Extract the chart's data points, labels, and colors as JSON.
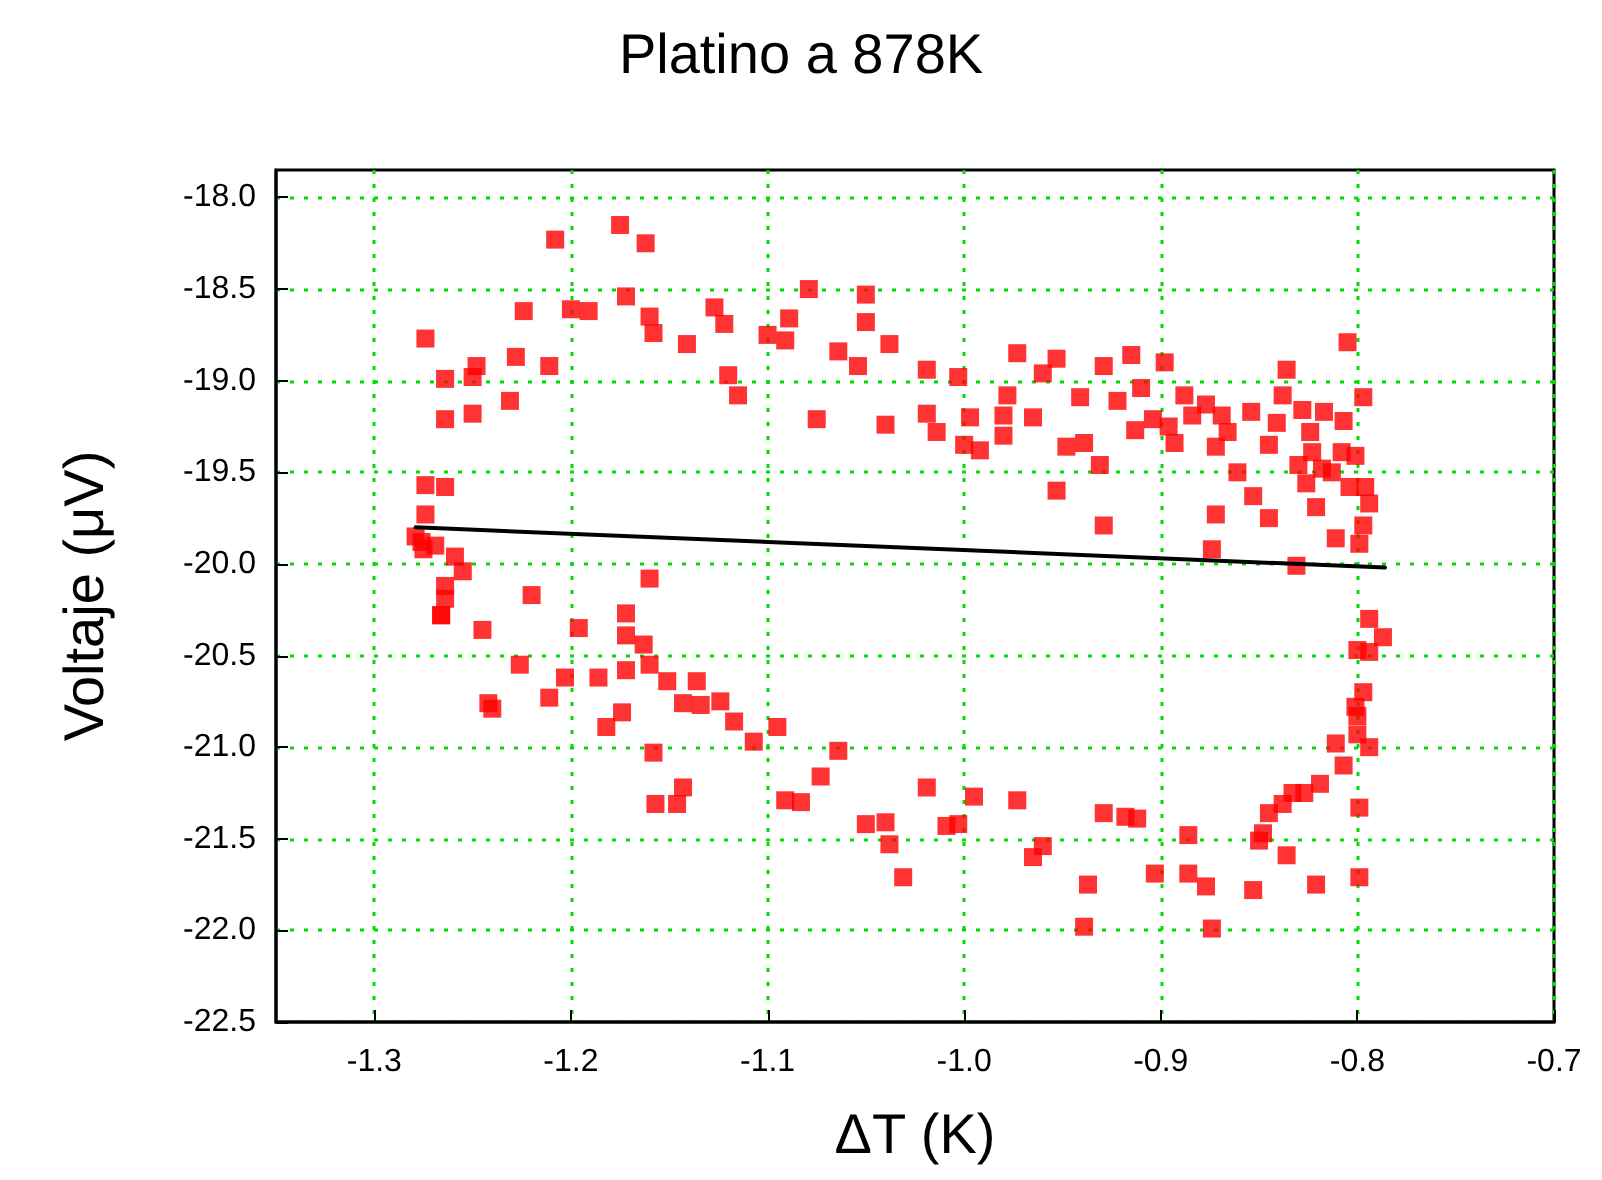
{
  "chart_data": {
    "type": "scatter",
    "title": "Platino a 878K",
    "xlabel": "ΔT (K)",
    "ylabel": "Voltaje (μV)",
    "xlim": [
      -1.35,
      -0.7
    ],
    "xticks": [
      -1.3,
      -1.2,
      -1.1,
      {
        "value": -1,
        "label": "-1.0"
      },
      -0.9,
      -0.8,
      -0.7
    ],
    "ylim": [
      -22.5,
      -17.85
    ],
    "yticks": [
      -22.5,
      {
        "value": -22,
        "label": "-22.0"
      },
      -21.5,
      {
        "value": -21,
        "label": "-21.0"
      },
      -20.5,
      {
        "value": -20,
        "label": "-20.0"
      },
      -19.5,
      {
        "value": -19,
        "label": "-19.0"
      },
      -18.5,
      {
        "value": -18,
        "label": "-18.0"
      }
    ],
    "grid": true,
    "series": [
      {
        "color": "#ff0000",
        "marker": "square",
        "x": [
          -1.274,
          -1.208,
          -1.175,
          -1.162,
          -1.224,
          -1.2,
          -1.191,
          -1.172,
          -1.16,
          -1.158,
          -1.141,
          -1.127,
          -1.122,
          -1.1,
          -1.091,
          -1.089,
          -1.079,
          -1.12,
          -1.115,
          -1.075,
          -1.264,
          -1.248,
          -1.25,
          -1.228,
          -1.211,
          -1.231,
          -1.25,
          -1.264,
          -1.274,
          -1.264,
          -1.274,
          -1.279,
          -1.275,
          -1.269,
          -1.259,
          -1.255,
          -1.16,
          -1.276,
          -1.266,
          -1.264,
          -1.264,
          -1.266,
          -1.22,
          -1.245,
          -1.196,
          -1.172,
          -1.172,
          -1.163,
          -1.226,
          -1.203,
          -1.186,
          -1.172,
          -1.16,
          -1.151,
          -1.136,
          -1.242,
          -1.24,
          -1.211,
          -1.174,
          -1.182,
          -1.143,
          -1.134,
          -1.124,
          -1.117,
          -1.107,
          -1.095,
          -1.158,
          -1.157,
          -1.146,
          -1.143,
          -1.091,
          -1.083,
          -1.073,
          -1.064,
          -1.05,
          -1.04,
          -1.038,
          -1.031,
          -1.019,
          -1.009,
          -1.003,
          -0.995,
          -0.973,
          -0.965,
          -0.96,
          -0.937,
          -0.939,
          -0.929,
          -0.918,
          -0.912,
          -0.903,
          -0.886,
          -0.886,
          -0.877,
          -0.874,
          -0.853,
          -0.85,
          -0.848,
          -0.845,
          -0.838,
          -0.836,
          -0.833,
          -0.827,
          -0.819,
          -0.821,
          -0.807,
          -0.811,
          -0.799,
          -0.799,
          -0.794,
          -0.8,
          -0.8,
          -0.801,
          -0.797,
          -0.8,
          -0.794,
          -0.794,
          -0.787,
          -0.831,
          -0.929,
          -0.872,
          -0.874,
          -0.845,
          -0.821,
          -0.811,
          -0.799,
          -0.797,
          -1.05,
          -1.05,
          -1.038,
          -1.064,
          -1.054,
          -1.04,
          -1.019,
          -1.019,
          -1.014,
          -1.003,
          -0.997,
          -1.0,
          -0.992,
          -0.98,
          -0.978,
          -0.98,
          -0.973,
          -0.965,
          -0.96,
          -0.953,
          -0.948,
          -0.939,
          -0.941,
          -0.929,
          -0.931,
          -0.953,
          -0.922,
          -0.915,
          -0.91,
          -0.898,
          -0.913,
          -0.904,
          -0.896,
          -0.893,
          -0.888,
          -0.884,
          -0.877,
          -0.869,
          -0.872,
          -0.866,
          -0.861,
          -0.853,
          -0.854,
          -0.845,
          -0.841,
          -0.836,
          -0.838,
          -0.828,
          -0.824,
          -0.817,
          -0.807,
          -0.805,
          -0.797,
          -0.83,
          -0.826,
          -0.823,
          -0.818,
          -0.813,
          -0.808,
          -0.801,
          -0.804,
          -0.796,
          -0.794
        ],
        "values": [
          -18.77,
          -18.23,
          -18.15,
          -18.25,
          -18.62,
          -18.61,
          -18.62,
          -18.54,
          -18.65,
          -18.74,
          -18.8,
          -18.6,
          -18.69,
          -18.75,
          -18.78,
          -18.66,
          -18.5,
          -18.97,
          -19.08,
          -19.21,
          -18.99,
          -18.92,
          -18.98,
          -18.87,
          -18.92,
          -19.11,
          -19.18,
          -19.21,
          -19.57,
          -19.58,
          -19.73,
          -19.85,
          -19.92,
          -19.9,
          -19.96,
          -20.04,
          -20.08,
          -19.88,
          -20.28,
          -20.12,
          -20.19,
          -20.28,
          -20.17,
          -20.36,
          -20.35,
          -20.27,
          -20.39,
          -20.44,
          -20.55,
          -20.62,
          -20.62,
          -20.58,
          -20.55,
          -20.64,
          -20.64,
          -20.76,
          -20.79,
          -20.73,
          -20.81,
          -20.89,
          -20.76,
          -20.77,
          -20.75,
          -20.86,
          -20.97,
          -20.89,
          -21.03,
          -21.31,
          -21.31,
          -21.22,
          -21.29,
          -21.3,
          -21.16,
          -21.02,
          -21.42,
          -21.41,
          -21.53,
          -21.71,
          -21.22,
          -21.43,
          -21.42,
          -21.27,
          -21.29,
          -21.6,
          -21.54,
          -21.75,
          -21.98,
          -21.36,
          -21.38,
          -21.39,
          -21.69,
          -21.48,
          -21.69,
          -21.76,
          -21.99,
          -21.78,
          -21.51,
          -21.47,
          -21.36,
          -21.31,
          -21.59,
          -21.25,
          -21.25,
          -21.2,
          -21.75,
          -21.1,
          -20.98,
          -21.33,
          -21.71,
          -21.0,
          -20.93,
          -20.83,
          -20.78,
          -20.7,
          -20.47,
          -20.48,
          -20.3,
          -20.4,
          -20.01,
          -19.79,
          -19.73,
          -19.92,
          -19.75,
          -19.69,
          -19.86,
          -19.89,
          -19.79,
          -18.53,
          -18.68,
          -18.8,
          -18.84,
          -18.92,
          -19.24,
          -18.94,
          -19.18,
          -19.28,
          -18.98,
          -19.2,
          -19.35,
          -19.38,
          -19.19,
          -19.08,
          -19.3,
          -18.85,
          -19.2,
          -18.96,
          -18.88,
          -19.36,
          -19.34,
          -19.09,
          -18.92,
          -19.46,
          -19.6,
          -19.11,
          -18.86,
          -19.04,
          -18.9,
          -19.27,
          -19.21,
          -19.25,
          -19.34,
          -19.08,
          -19.19,
          -19.13,
          -19.19,
          -19.36,
          -19.28,
          -19.5,
          -19.63,
          -19.17,
          -19.35,
          -19.23,
          -18.94,
          -19.08,
          -19.16,
          -19.28,
          -19.17,
          -19.22,
          -18.79,
          -19.09,
          -19.46,
          -19.56,
          -19.39,
          -19.48,
          -19.5,
          -19.39,
          -19.41,
          -19.58,
          -19.58,
          -19.67
        ]
      },
      {
        "type": "line",
        "color": "#000000",
        "marker": "none",
        "line_style": "solid",
        "x": [
          -1.279,
          -0.786
        ],
        "values": [
          -19.8,
          -20.02
        ]
      }
    ]
  }
}
